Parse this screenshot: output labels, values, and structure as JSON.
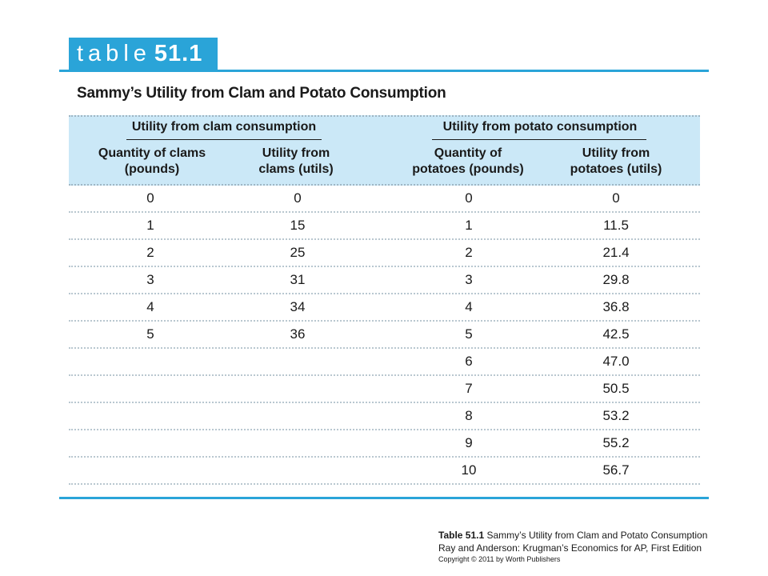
{
  "label": {
    "word": "table",
    "number": "51.1"
  },
  "title": "Sammy’s Utility from Clam and Potato Consumption",
  "groups": [
    {
      "label": "Utility from clam consumption"
    },
    {
      "label": "Utility from potato consumption"
    }
  ],
  "columns": [
    {
      "line1": "Quantity of clams",
      "line2": "(pounds)"
    },
    {
      "line1": "Utility from",
      "line2": "clams (utils)"
    },
    {
      "line1": "Quantity of",
      "line2": "potatoes (pounds)"
    },
    {
      "line1": "Utility from",
      "line2": "potatoes (utils)"
    }
  ],
  "rows": [
    [
      "0",
      "0",
      "0",
      "0"
    ],
    [
      "1",
      "15",
      "1",
      "11.5"
    ],
    [
      "2",
      "25",
      "2",
      "21.4"
    ],
    [
      "3",
      "31",
      "3",
      "29.8"
    ],
    [
      "4",
      "34",
      "4",
      "36.8"
    ],
    [
      "5",
      "36",
      "5",
      "42.5"
    ],
    [
      "",
      "",
      "6",
      "47.0"
    ],
    [
      "",
      "",
      "7",
      "50.5"
    ],
    [
      "",
      "",
      "8",
      "53.2"
    ],
    [
      "",
      "",
      "9",
      "55.2"
    ],
    [
      "",
      "",
      "10",
      "56.7"
    ]
  ],
  "caption": {
    "line1_bold": "Table 51.1",
    "line1_rest": "Sammy’s Utility from Clam and Potato Consumption",
    "line2": "Ray and Anderson: Krugman’s Economics for AP, First Edition",
    "line3": "Copyright © 2011 by Worth Publishers"
  },
  "colors": {
    "accent": "#2aa4d8",
    "header_band": "#cbe8f7",
    "text": "#1a1a1a"
  }
}
